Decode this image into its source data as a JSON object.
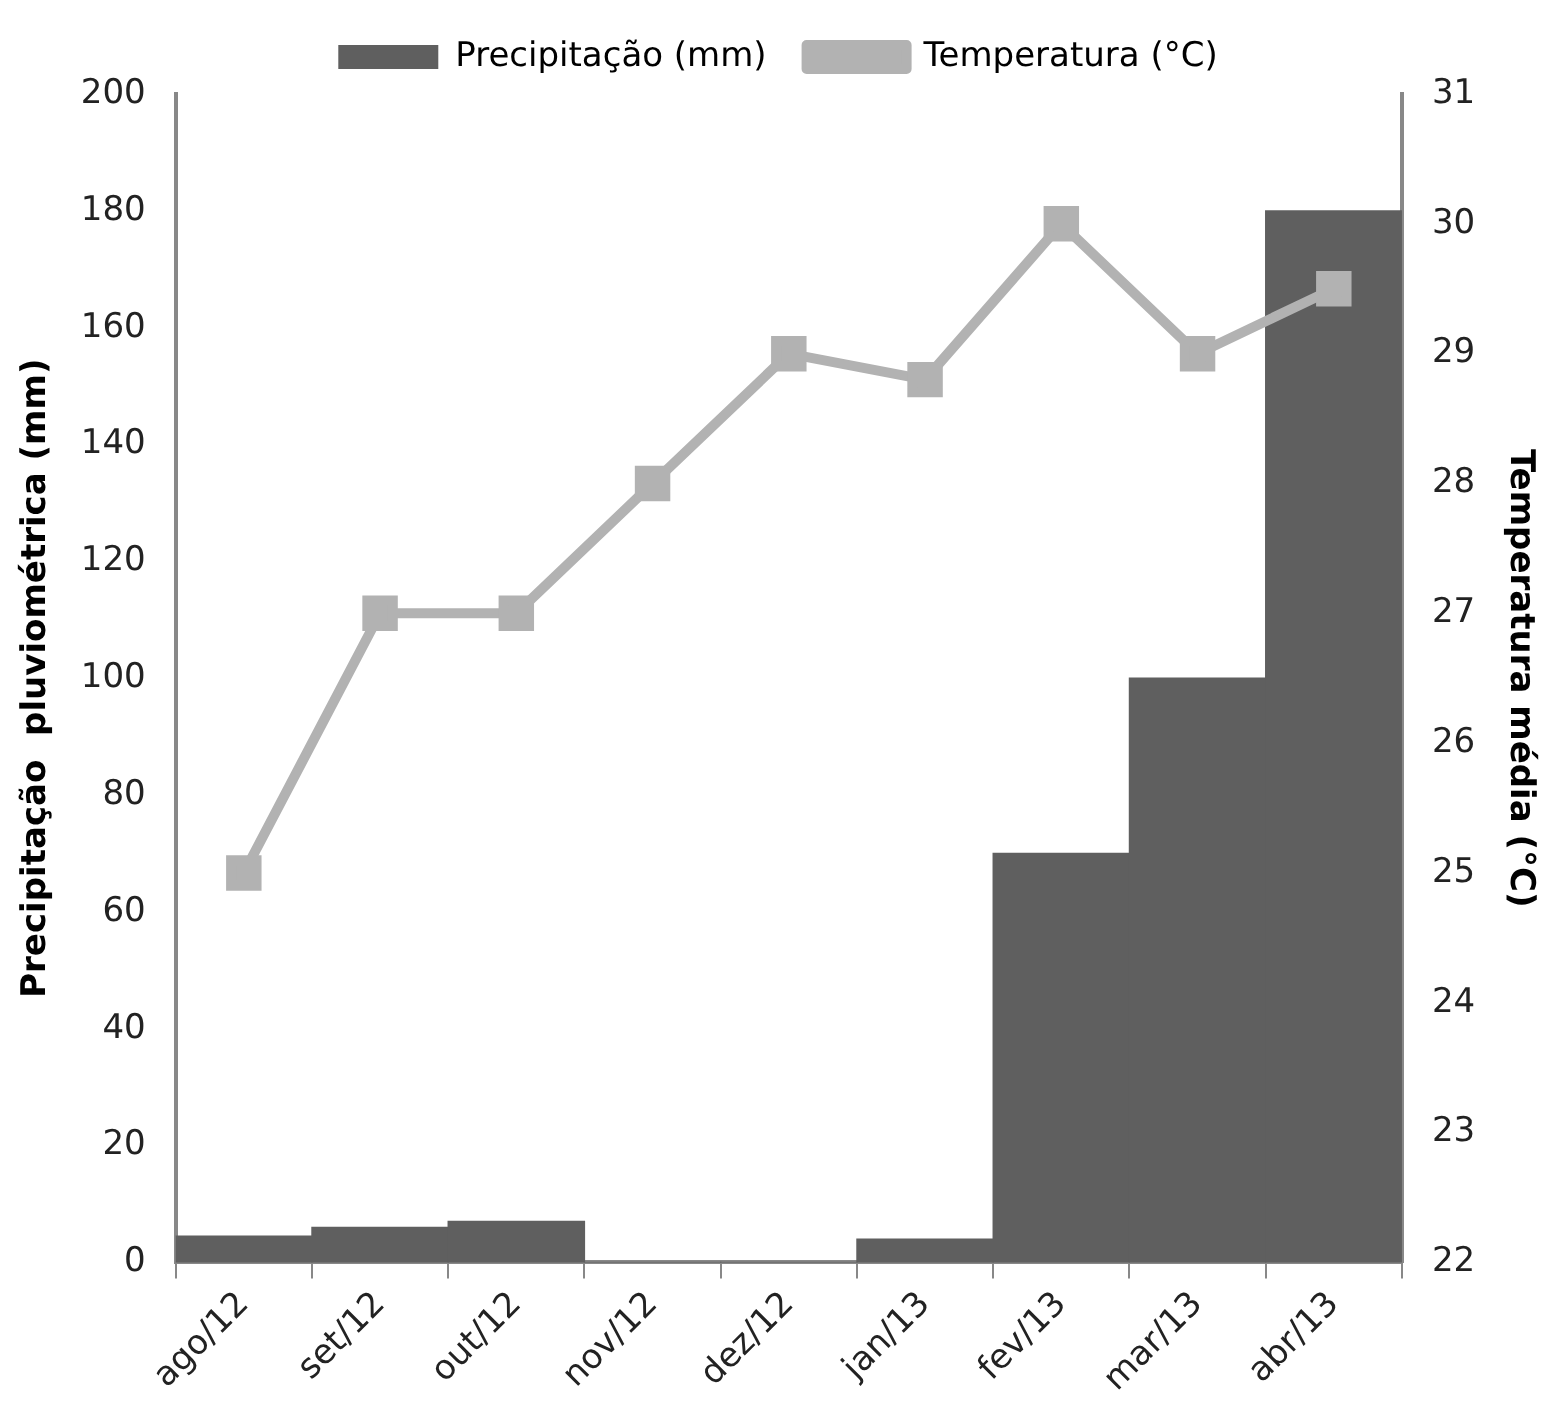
{
  "chart_data": {
    "type": "bar",
    "categories": [
      "ago/12",
      "set/12",
      "out/12",
      "nov/12",
      "dez/12",
      "jan/13",
      "fev/13",
      "mar/13",
      "abr/13"
    ],
    "series": [
      {
        "name": "Precipitação (mm)",
        "color": "#5f5f5f",
        "values": [
          4.5,
          6,
          7,
          0,
          0,
          4,
          70,
          100,
          180
        ]
      },
      {
        "name": "Temperatura (°C)",
        "type": "line",
        "axis": "y2",
        "color": "#b2b2b2",
        "marker": "square",
        "values": [
          25,
          27,
          27,
          28,
          29,
          28.8,
          30,
          29,
          29.5
        ]
      }
    ],
    "ylabel": "Precipitação  pluviométrica (mm)",
    "y2label": "Temperatura média (°C)",
    "ylim": [
      0,
      200
    ],
    "yticks": [
      0,
      20,
      40,
      60,
      80,
      100,
      120,
      140,
      160,
      180,
      200
    ],
    "y2lim": [
      22,
      31
    ],
    "y2ticks": [
      22,
      23,
      24,
      25,
      26,
      27,
      28,
      29,
      30,
      31
    ],
    "legend": "top",
    "grid": false
  }
}
